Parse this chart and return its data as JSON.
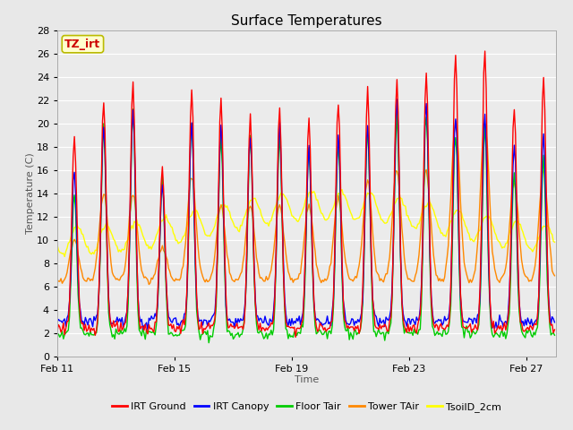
{
  "title": "Surface Temperatures",
  "xlabel": "Time",
  "ylabel": "Temperature (C)",
  "ylim": [
    0,
    28
  ],
  "yticks": [
    0,
    2,
    4,
    6,
    8,
    10,
    12,
    14,
    16,
    18,
    20,
    22,
    24,
    26,
    28
  ],
  "xtick_labels": [
    "Feb 11",
    "Feb 15",
    "Feb 19",
    "Feb 23",
    "Feb 27"
  ],
  "xtick_positions_days": [
    0,
    4,
    8,
    12,
    16
  ],
  "xlim": [
    0,
    17
  ],
  "fig_bg_color": "#e8e8e8",
  "plot_bg_color": "#ebebeb",
  "grid_color": "#ffffff",
  "series": [
    {
      "label": "IRT Ground",
      "color": "#ff0000"
    },
    {
      "label": "IRT Canopy",
      "color": "#0000ff"
    },
    {
      "label": "Floor Tair",
      "color": "#00cc00"
    },
    {
      "label": "Tower TAir",
      "color": "#ff8800"
    },
    {
      "label": "TsoilD_2cm",
      "color": "#ffff00"
    }
  ],
  "annotation_text": "TZ_irt",
  "annotation_color": "#cc0000",
  "annotation_bg": "#ffffcc",
  "annotation_border": "#bbbb00",
  "figsize": [
    6.4,
    4.8
  ],
  "dpi": 100
}
